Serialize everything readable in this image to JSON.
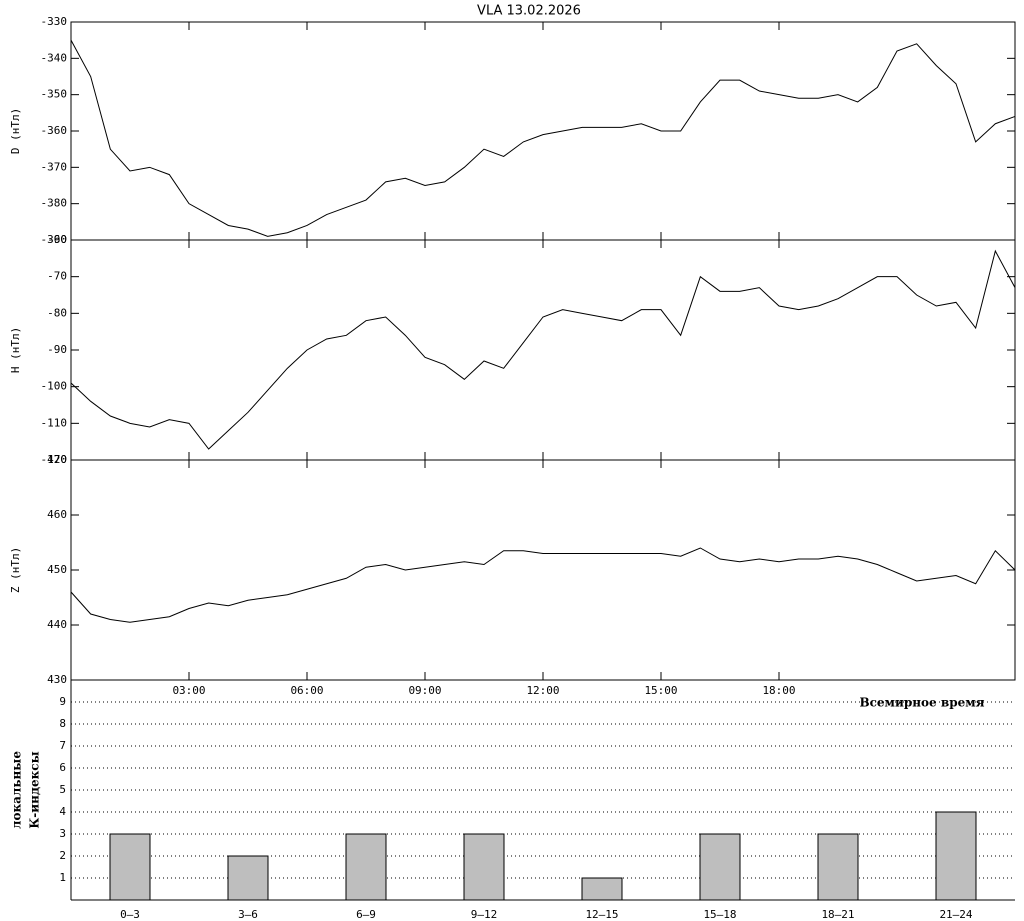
{
  "title": "VLA   13.02.2026",
  "chart_data": [
    {
      "type": "line",
      "ylabel": "D (нТл)",
      "color": "#000000",
      "xlim": [
        0,
        24
      ],
      "ylim": [
        -390,
        -330
      ],
      "yticks": [
        -330,
        -340,
        -350,
        -360,
        -370,
        -380,
        -390
      ],
      "x": [
        0,
        0.5,
        1,
        1.5,
        2,
        2.5,
        3,
        3.5,
        4,
        4.5,
        5,
        5.5,
        6,
        6.5,
        7,
        7.5,
        8,
        8.5,
        9,
        9.5,
        10,
        10.5,
        11,
        11.5,
        12,
        12.5,
        13,
        13.5,
        14,
        14.5,
        15,
        15.5,
        16,
        16.5,
        17,
        17.5,
        18,
        18.5,
        19,
        19.5,
        20,
        20.5,
        21,
        21.5,
        22,
        22.5,
        23,
        23.5,
        24
      ],
      "values": [
        -335,
        -345,
        -365,
        -371,
        -370,
        -372,
        -380,
        -383,
        -386,
        -387,
        -389,
        -388,
        -386,
        -383,
        -381,
        -379,
        -374,
        -373,
        -375,
        -374,
        -370,
        -365,
        -367,
        -363,
        -361,
        -360,
        -359,
        -359,
        -359,
        -358,
        -360,
        -360,
        -352,
        -346,
        -346,
        -349,
        -350,
        -351,
        -351,
        -350,
        -352,
        -348,
        -338,
        -336,
        -342,
        -347,
        -363,
        -358,
        -356
      ]
    },
    {
      "type": "line",
      "ylabel": "H (нТл)",
      "color": "#000000",
      "xlim": [
        0,
        24
      ],
      "ylim": [
        -120,
        -60
      ],
      "yticks": [
        -60,
        -70,
        -80,
        -90,
        -100,
        -110,
        -120
      ],
      "x": [
        0,
        0.5,
        1,
        1.5,
        2,
        2.5,
        3,
        3.5,
        4,
        4.5,
        5,
        5.5,
        6,
        6.5,
        7,
        7.5,
        8,
        8.5,
        9,
        9.5,
        10,
        10.5,
        11,
        11.5,
        12,
        12.5,
        13,
        13.5,
        14,
        14.5,
        15,
        15.5,
        16,
        16.5,
        17,
        17.5,
        18,
        18.5,
        19,
        19.5,
        20,
        20.5,
        21,
        21.5,
        22,
        22.5,
        23,
        23.5,
        24
      ],
      "values": [
        -99,
        -104,
        -108,
        -110,
        -111,
        -109,
        -110,
        -117,
        -112,
        -107,
        -101,
        -95,
        -90,
        -87,
        -86,
        -82,
        -81,
        -86,
        -92,
        -94,
        -98,
        -93,
        -95,
        -88,
        -81,
        -79,
        -80,
        -81,
        -82,
        -79,
        -79,
        -86,
        -70,
        -74,
        -74,
        -73,
        -78,
        -79,
        -78,
        -76,
        -73,
        -70,
        -70,
        -75,
        -78,
        -77,
        -84,
        -63,
        -73
      ]
    },
    {
      "type": "line",
      "ylabel": "Z (нТл)",
      "xlabel": "Всемирное время",
      "color": "#000000",
      "xlim": [
        0,
        24
      ],
      "ylim": [
        430,
        470
      ],
      "yticks": [
        470,
        460,
        450,
        440,
        430
      ],
      "xticks": [
        {
          "value": 3,
          "label": "03:00"
        },
        {
          "value": 6,
          "label": "06:00"
        },
        {
          "value": 9,
          "label": "09:00"
        },
        {
          "value": 12,
          "label": "12:00"
        },
        {
          "value": 15,
          "label": "15:00"
        },
        {
          "value": 18,
          "label": "18:00"
        }
      ],
      "x": [
        0,
        0.5,
        1,
        1.5,
        2,
        2.5,
        3,
        3.5,
        4,
        4.5,
        5,
        5.5,
        6,
        6.5,
        7,
        7.5,
        8,
        8.5,
        9,
        9.5,
        10,
        10.5,
        11,
        11.5,
        12,
        12.5,
        13,
        13.5,
        14,
        14.5,
        15,
        15.5,
        16,
        16.5,
        17,
        17.5,
        18,
        18.5,
        19,
        19.5,
        20,
        20.5,
        21,
        21.5,
        22,
        22.5,
        23,
        23.5,
        24
      ],
      "values": [
        446,
        442,
        441,
        440.5,
        441,
        441.5,
        443,
        444,
        443.5,
        444.5,
        445,
        445.5,
        446.5,
        447.5,
        448.5,
        450.5,
        451,
        450,
        450.5,
        451,
        451.5,
        451,
        453.5,
        453.5,
        453,
        453,
        453,
        453,
        453,
        453,
        453,
        452.5,
        454,
        452,
        451.5,
        452,
        451.5,
        452,
        452,
        452.5,
        452,
        451,
        449.5,
        448,
        448.5,
        449,
        447.5,
        453.5,
        450
      ]
    },
    {
      "type": "bar",
      "ylabel": [
        "локальные",
        "К-индексы"
      ],
      "color": "#bebebe",
      "grid": true,
      "ylim": [
        0,
        10
      ],
      "yticks": [
        1,
        2,
        3,
        4,
        5,
        6,
        7,
        8,
        9
      ],
      "categories": [
        "0–3",
        "3–6",
        "6–9",
        "9–12",
        "12–15",
        "15–18",
        "18–21",
        "21–24"
      ],
      "values": [
        3,
        2,
        3,
        3,
        1,
        3,
        3,
        4
      ]
    }
  ]
}
